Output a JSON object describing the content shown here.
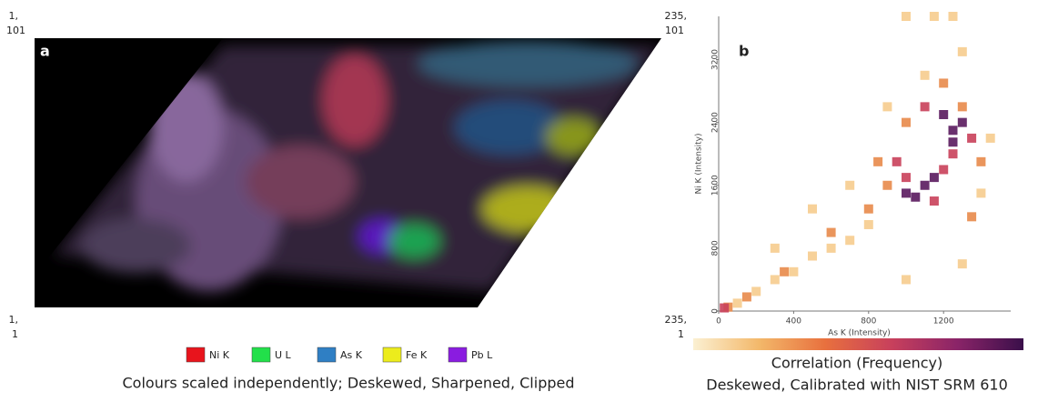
{
  "chart_data": [
    {
      "type": "image",
      "panel_label": "a",
      "corners": {
        "top_left": [
          "1,",
          "101"
        ],
        "top_right": [
          "235,",
          "101"
        ],
        "bottom_left": [
          "1,",
          "1"
        ],
        "bottom_right": [
          "235,",
          "1"
        ]
      },
      "legend": [
        {
          "name": "Ni K",
          "color": "#e8141c"
        },
        {
          "name": "U L",
          "color": "#22e04a"
        },
        {
          "name": "As K",
          "color": "#2f7fc4"
        },
        {
          "name": "Fe K",
          "color": "#ecec1c"
        },
        {
          "name": "Pb L",
          "color": "#8a1ce0"
        }
      ],
      "caption": "Colours scaled independently; Deskewed, Sharpened, Clipped"
    },
    {
      "type": "scatter",
      "panel_label": "b",
      "x_label": "As K (Intensity)",
      "y_label": "Ni K (Intensity)",
      "xlim": [
        0,
        1500
      ],
      "ylim": [
        0,
        3750
      ],
      "xticks": [
        0,
        400,
        800,
        1200
      ],
      "yticks": [
        0,
        800,
        1600,
        2400,
        3200
      ],
      "groups": [
        {
          "color": "#f6cc8e",
          "x": [
            100,
            200,
            300,
            400,
            500,
            600,
            700,
            800,
            300,
            500,
            1400,
            1450,
            1100,
            900,
            1300,
            1000,
            700,
            1300,
            1000,
            1150,
            1250
          ],
          "y": [
            100,
            250,
            400,
            500,
            700,
            800,
            900,
            1100,
            800,
            1300,
            1500,
            2200,
            3000,
            2600,
            600,
            400,
            1600,
            3300,
            3750,
            3750,
            3750
          ]
        },
        {
          "color": "#e8894a",
          "x": [
            50,
            150,
            350,
            600,
            800,
            900,
            1300,
            1350,
            1000,
            1200,
            1400,
            850
          ],
          "y": [
            50,
            180,
            500,
            1000,
            1300,
            1600,
            2600,
            1200,
            2400,
            2900,
            1900,
            1900
          ]
        },
        {
          "color": "#c9405a",
          "x": [
            30,
            950,
            1150,
            1250,
            1100,
            1350,
            1000,
            1200
          ],
          "y": [
            40,
            1900,
            1400,
            2000,
            2600,
            2200,
            1700,
            1800
          ]
        },
        {
          "color": "#5a1a5e",
          "x": [
            1100,
            1050,
            1250,
            1200,
            1300,
            1150,
            1000,
            1250
          ],
          "y": [
            1600,
            1450,
            2300,
            2500,
            2400,
            1700,
            1500,
            2150
          ]
        }
      ],
      "colorbar": {
        "label": "Correlation (Frequency)",
        "colors": [
          "#fbf0d2",
          "#f3b86a",
          "#e8703e",
          "#c8405c",
          "#8a2468",
          "#3a0f4a"
        ]
      },
      "caption": "Deskewed, Calibrated with NIST SRM 610"
    }
  ]
}
